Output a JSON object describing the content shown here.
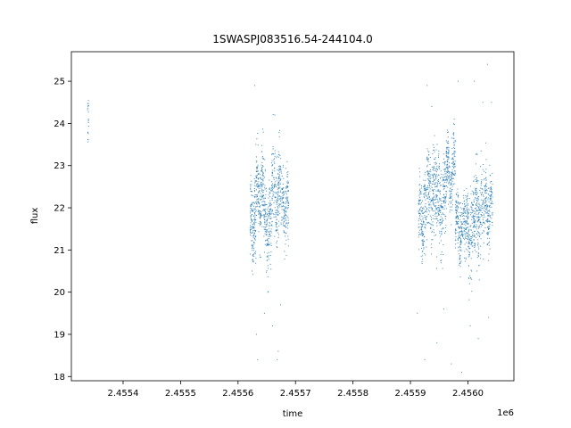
{
  "chart_data": {
    "type": "scatter",
    "title": "1SWASPJ083516.54-244104.0",
    "xlabel": "time",
    "ylabel": "flux",
    "x_offset_label": "1e6",
    "xlim": [
      2.45531,
      2.45608
    ],
    "ylim": [
      17.9,
      25.7
    ],
    "x_ticks": [
      2.4554,
      2.4555,
      2.4556,
      2.4557,
      2.4558,
      2.4559,
      2.456
    ],
    "x_tick_labels": [
      "2.4554",
      "2.4555",
      "2.4556",
      "2.4557",
      "2.4558",
      "2.4559",
      "2.4560"
    ],
    "y_ticks": [
      18,
      19,
      20,
      21,
      22,
      23,
      24,
      25
    ],
    "y_tick_labels": [
      "18",
      "19",
      "20",
      "21",
      "22",
      "23",
      "24",
      "25"
    ],
    "grid": false,
    "legend": "none",
    "marker_color": "#1f77b4",
    "series": [
      {
        "segments": [
          {
            "x_start": 2.455338,
            "x_end": 2.45534,
            "y_center": 24.0,
            "y_spread": 0.35,
            "n": 20
          },
          {
            "x_start": 2.455621,
            "x_end": 2.455631,
            "y_center": 21.6,
            "y_spread": 0.8,
            "n": 160
          },
          {
            "x_start": 2.455631,
            "x_end": 2.455645,
            "y_center": 22.3,
            "y_spread": 0.8,
            "n": 200
          },
          {
            "x_start": 2.455645,
            "x_end": 2.455658,
            "y_center": 21.5,
            "y_spread": 0.8,
            "n": 180
          },
          {
            "x_start": 2.455658,
            "x_end": 2.455675,
            "y_center": 22.3,
            "y_spread": 0.9,
            "n": 220
          },
          {
            "x_start": 2.455675,
            "x_end": 2.455688,
            "y_center": 22.0,
            "y_spread": 0.8,
            "n": 160
          },
          {
            "x_start": 2.455914,
            "x_end": 2.455928,
            "y_center": 21.7,
            "y_spread": 0.8,
            "n": 180
          },
          {
            "x_start": 2.455928,
            "x_end": 2.455945,
            "y_center": 22.3,
            "y_spread": 0.9,
            "n": 220
          },
          {
            "x_start": 2.455945,
            "x_end": 2.455962,
            "y_center": 22.1,
            "y_spread": 0.9,
            "n": 220
          },
          {
            "x_start": 2.455962,
            "x_end": 2.455978,
            "y_center": 22.8,
            "y_spread": 0.7,
            "n": 220
          },
          {
            "x_start": 2.455978,
            "x_end": 2.455995,
            "y_center": 21.5,
            "y_spread": 0.7,
            "n": 220
          },
          {
            "x_start": 2.455995,
            "x_end": 2.456012,
            "y_center": 21.4,
            "y_spread": 0.8,
            "n": 220
          },
          {
            "x_start": 2.456012,
            "x_end": 2.456028,
            "y_center": 21.9,
            "y_spread": 0.9,
            "n": 200
          },
          {
            "x_start": 2.456028,
            "x_end": 2.456043,
            "y_center": 22.0,
            "y_spread": 0.8,
            "n": 180
          }
        ],
        "outliers": [
          [
            2.455629,
            24.9
          ],
          [
            2.455632,
            19.0
          ],
          [
            2.455634,
            18.4
          ],
          [
            2.455646,
            19.5
          ],
          [
            2.455652,
            20.0
          ],
          [
            2.45566,
            19.2
          ],
          [
            2.455664,
            24.2
          ],
          [
            2.455668,
            18.4
          ],
          [
            2.45567,
            18.6
          ],
          [
            2.455674,
            19.7
          ],
          [
            2.455912,
            19.5
          ],
          [
            2.455925,
            18.4
          ],
          [
            2.455929,
            24.9
          ],
          [
            2.455937,
            24.4
          ],
          [
            2.455946,
            18.8
          ],
          [
            2.455958,
            19.6
          ],
          [
            2.455971,
            18.3
          ],
          [
            2.455983,
            25.0
          ],
          [
            2.455989,
            18.1
          ],
          [
            2.456004,
            19.2
          ],
          [
            2.456011,
            25.0
          ],
          [
            2.456018,
            18.9
          ],
          [
            2.456026,
            24.5
          ],
          [
            2.456034,
            25.4
          ],
          [
            2.456036,
            19.4
          ],
          [
            2.456041,
            24.5
          ]
        ]
      }
    ]
  }
}
